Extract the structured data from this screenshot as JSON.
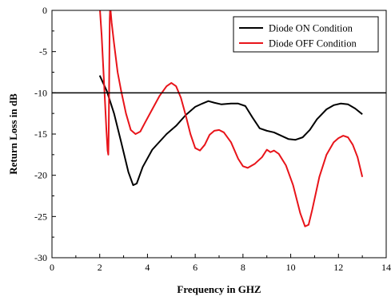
{
  "chart_data": {
    "type": "line",
    "title": "",
    "xlabel": "Frequency in GHZ",
    "ylabel": "Return Loss in dB",
    "xlim": [
      0,
      14
    ],
    "ylim": [
      -30,
      0
    ],
    "xticks": [
      0,
      2,
      4,
      6,
      8,
      10,
      12,
      14
    ],
    "yticks": [
      0,
      -5,
      -10,
      -15,
      -20,
      -25,
      -30
    ],
    "x_tick_labels": [
      "0",
      "2",
      "4",
      "6",
      "8",
      "10",
      "12",
      "14"
    ],
    "y_tick_labels": [
      "0",
      "-5",
      "-10",
      "-15",
      "-20",
      "-25",
      "-30"
    ],
    "grid": false,
    "legend_position": "top-right",
    "reference_line": {
      "y": -10,
      "color": "#000000"
    },
    "series": [
      {
        "name": "Diode ON Condition",
        "color": "#000000",
        "points": [
          [
            2.0,
            -7.9
          ],
          [
            2.3,
            -9.8
          ],
          [
            2.6,
            -12.5
          ],
          [
            2.9,
            -16.0
          ],
          [
            3.2,
            -19.6
          ],
          [
            3.4,
            -21.2
          ],
          [
            3.55,
            -21.0
          ],
          [
            3.8,
            -19.0
          ],
          [
            4.2,
            -16.9
          ],
          [
            4.8,
            -15.0
          ],
          [
            5.2,
            -14.0
          ],
          [
            5.6,
            -12.7
          ],
          [
            6.0,
            -11.7
          ],
          [
            6.3,
            -11.3
          ],
          [
            6.55,
            -11.0
          ],
          [
            6.8,
            -11.2
          ],
          [
            7.1,
            -11.4
          ],
          [
            7.5,
            -11.3
          ],
          [
            7.8,
            -11.3
          ],
          [
            8.1,
            -11.6
          ],
          [
            8.4,
            -13.0
          ],
          [
            8.7,
            -14.3
          ],
          [
            9.0,
            -14.6
          ],
          [
            9.3,
            -14.8
          ],
          [
            9.6,
            -15.2
          ],
          [
            9.9,
            -15.6
          ],
          [
            10.2,
            -15.7
          ],
          [
            10.5,
            -15.4
          ],
          [
            10.8,
            -14.5
          ],
          [
            11.1,
            -13.2
          ],
          [
            11.5,
            -12.0
          ],
          [
            11.8,
            -11.5
          ],
          [
            12.1,
            -11.3
          ],
          [
            12.4,
            -11.4
          ],
          [
            12.7,
            -11.9
          ],
          [
            13.0,
            -12.6
          ]
        ]
      },
      {
        "name": "Diode OFF Condition",
        "color": "#e8141a",
        "points": [
          [
            2.0,
            0.5
          ],
          [
            2.08,
            -3.0
          ],
          [
            2.15,
            -7.0
          ],
          [
            2.22,
            -11.0
          ],
          [
            2.28,
            -14.5
          ],
          [
            2.33,
            -17.0
          ],
          [
            2.36,
            -17.5
          ],
          [
            2.38,
            -14.0
          ],
          [
            2.4,
            -7.0
          ],
          [
            2.42,
            -1.0
          ],
          [
            2.44,
            0.5
          ],
          [
            2.5,
            -1.5
          ],
          [
            2.6,
            -4.0
          ],
          [
            2.75,
            -7.5
          ],
          [
            2.9,
            -9.8
          ],
          [
            3.1,
            -12.5
          ],
          [
            3.3,
            -14.5
          ],
          [
            3.5,
            -15.0
          ],
          [
            3.7,
            -14.7
          ],
          [
            3.9,
            -13.6
          ],
          [
            4.2,
            -12.0
          ],
          [
            4.5,
            -10.4
          ],
          [
            4.8,
            -9.2
          ],
          [
            5.0,
            -8.8
          ],
          [
            5.2,
            -9.2
          ],
          [
            5.4,
            -10.6
          ],
          [
            5.6,
            -12.7
          ],
          [
            5.8,
            -15.0
          ],
          [
            6.0,
            -16.7
          ],
          [
            6.2,
            -17.0
          ],
          [
            6.4,
            -16.3
          ],
          [
            6.6,
            -15.1
          ],
          [
            6.8,
            -14.6
          ],
          [
            7.0,
            -14.5
          ],
          [
            7.2,
            -14.8
          ],
          [
            7.5,
            -16.0
          ],
          [
            7.8,
            -18.0
          ],
          [
            8.0,
            -18.9
          ],
          [
            8.2,
            -19.1
          ],
          [
            8.5,
            -18.6
          ],
          [
            8.8,
            -17.8
          ],
          [
            9.0,
            -16.9
          ],
          [
            9.15,
            -17.2
          ],
          [
            9.3,
            -17.0
          ],
          [
            9.5,
            -17.4
          ],
          [
            9.8,
            -18.8
          ],
          [
            10.1,
            -21.2
          ],
          [
            10.4,
            -24.6
          ],
          [
            10.6,
            -26.2
          ],
          [
            10.75,
            -26.0
          ],
          [
            10.9,
            -24.2
          ],
          [
            11.2,
            -20.2
          ],
          [
            11.5,
            -17.5
          ],
          [
            11.8,
            -16.0
          ],
          [
            12.0,
            -15.5
          ],
          [
            12.2,
            -15.2
          ],
          [
            12.4,
            -15.4
          ],
          [
            12.6,
            -16.3
          ],
          [
            12.8,
            -17.8
          ],
          [
            13.0,
            -20.2
          ]
        ]
      }
    ]
  }
}
